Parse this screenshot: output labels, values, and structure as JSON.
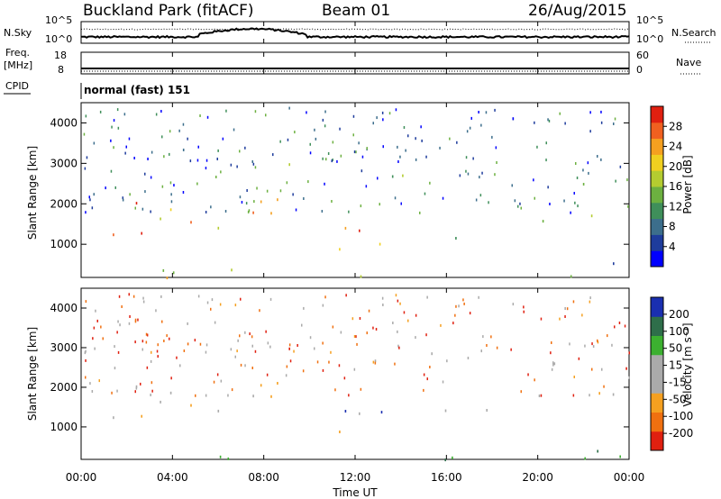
{
  "header": {
    "site": "Buckland Park (fitACF)",
    "beam": "Beam 01",
    "date": "26/Aug/2015"
  },
  "top_panel": {
    "left_label": "N.Sky",
    "right_label": "N.Search",
    "left_ticks": [
      "10^5",
      "10^0"
    ],
    "right_ticks": [
      "10^5",
      "10^0"
    ]
  },
  "freq_panel": {
    "left_label_1": "Freq.",
    "left_label_2": "[MHz]",
    "left_ticks": [
      "18",
      "8"
    ],
    "right_label": "Nave",
    "right_ticks": [
      "60",
      "0"
    ]
  },
  "cpid": {
    "label": "CPID",
    "value": "normal (fast) 151"
  },
  "chart_data": [
    {
      "type": "heatmap",
      "name": "power",
      "ylabel": "Slant Range [km]",
      "xlabel": "",
      "yticks": [
        "1000",
        "2000",
        "3000",
        "4000"
      ],
      "ylim": [
        180,
        4500
      ],
      "xlim": [
        0,
        24
      ],
      "colorbar": {
        "label": "Power [dB]",
        "ticks": [
          "4",
          "8",
          "12",
          "16",
          "20",
          "24",
          "28"
        ],
        "range": [
          0,
          30
        ]
      }
    },
    {
      "type": "heatmap",
      "name": "velocity",
      "ylabel": "Slant Range [km]",
      "xlabel": "Time UT",
      "yticks": [
        "1000",
        "2000",
        "3000",
        "4000"
      ],
      "xticks": [
        "00:00",
        "04:00",
        "08:00",
        "12:00",
        "16:00",
        "20:00",
        "00:00"
      ],
      "ylim": [
        180,
        4500
      ],
      "xlim": [
        0,
        24
      ],
      "colorbar": {
        "label": "Velocity [m s⁻¹]",
        "ticks": [
          "200",
          "100",
          "50",
          "15",
          "-15",
          "-50",
          "-100",
          "-200"
        ]
      }
    }
  ],
  "colors": {
    "power": [
      "#0000ff",
      "#1e3c9c",
      "#3c6e8c",
      "#3f8f5a",
      "#6cb040",
      "#b4cc30",
      "#f0d020",
      "#f5a020",
      "#f06020",
      "#e02010"
    ],
    "velocity_pos": [
      "#1a2fb0",
      "#2e6e4a",
      "#3cb030",
      "#aaaaaa"
    ],
    "velocity_neg": [
      "#aaaaaa",
      "#f5a020",
      "#f07010",
      "#e02010"
    ]
  }
}
